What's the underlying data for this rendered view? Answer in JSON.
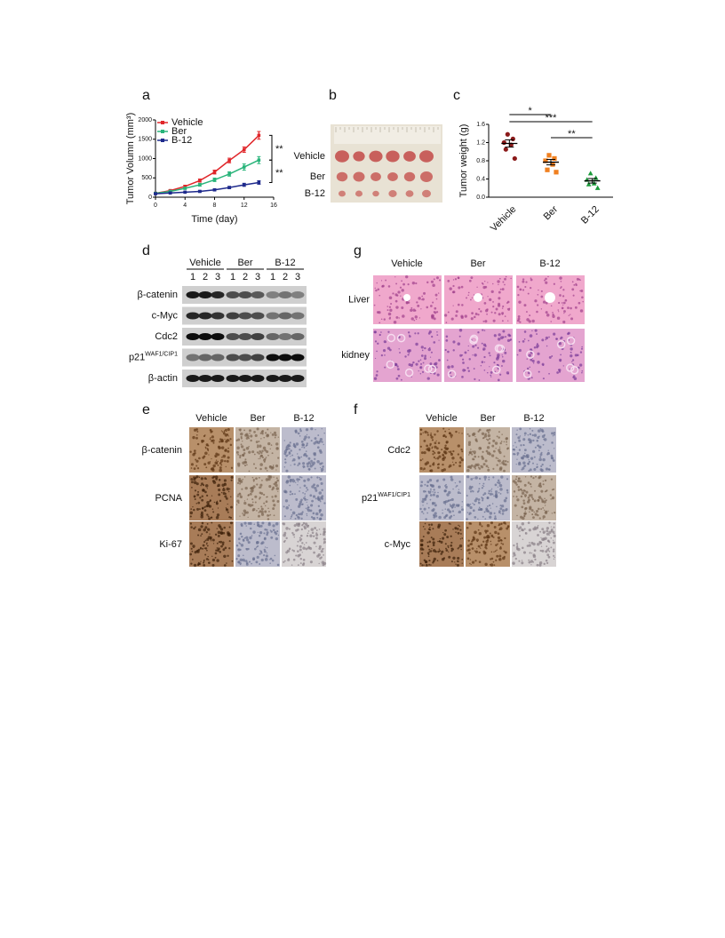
{
  "panels": [
    "a",
    "b",
    "c",
    "d",
    "e",
    "f",
    "g"
  ],
  "chart_data": [
    {
      "type": "line",
      "xlabel": "Time (day)",
      "ylabel": "Tumor Volumn (mm³)",
      "x": [
        0,
        2,
        4,
        6,
        8,
        10,
        12,
        14
      ],
      "xlim": [
        0,
        16
      ],
      "xticks": [
        0,
        4,
        8,
        12,
        16
      ],
      "ylim": [
        0,
        2000
      ],
      "yticks": [
        0,
        500,
        1000,
        1500,
        2000
      ],
      "legend": "upper left",
      "series": [
        {
          "name": "Vehicle",
          "color": "#e0262a",
          "values": [
            100,
            170,
            280,
            430,
            650,
            950,
            1230,
            1600
          ],
          "errors": [
            20,
            25,
            30,
            40,
            50,
            60,
            70,
            100
          ]
        },
        {
          "name": "Ber",
          "color": "#28b47a",
          "values": [
            100,
            150,
            230,
            320,
            450,
            600,
            780,
            960
          ],
          "errors": [
            20,
            20,
            25,
            35,
            45,
            55,
            80,
            90
          ]
        },
        {
          "name": "B-12",
          "color": "#1e2a8c",
          "values": [
            90,
            110,
            130,
            150,
            190,
            250,
            320,
            380
          ],
          "errors": [
            15,
            15,
            15,
            20,
            25,
            30,
            40,
            45
          ]
        }
      ],
      "annotations": [
        "**",
        "**"
      ]
    },
    {
      "type": "scatter",
      "ylabel": "Tumor weight (g)",
      "categories": [
        "Vehicle",
        "Ber",
        "B-12"
      ],
      "ylim": [
        0,
        1.6
      ],
      "yticks": [
        {
          "value": 0,
          "label": "0.0"
        },
        {
          "value": 0.4,
          "label": "0.4"
        },
        {
          "value": 0.8,
          "label": "0.8"
        },
        {
          "value": 1.2,
          "label": "1.2"
        },
        {
          "value": 1.6,
          "label": "1.6"
        }
      ],
      "series": [
        {
          "color": "#8b1a1a",
          "marker": "circle",
          "values": [
            1.38,
            1.28,
            1.2,
            1.15,
            1.05,
            0.85
          ]
        },
        {
          "color": "#f08020",
          "marker": "square",
          "values": [
            0.92,
            0.85,
            0.8,
            0.72,
            0.6,
            0.55
          ]
        },
        {
          "color": "#1a9a3a",
          "marker": "triangle",
          "values": [
            0.52,
            0.42,
            0.38,
            0.3,
            0.28,
            0.2
          ]
        }
      ],
      "means": [
        1.18,
        0.77,
        0.36
      ],
      "sems": [
        0.08,
        0.06,
        0.05
      ],
      "annotations": [
        "*",
        "***",
        "**"
      ]
    }
  ],
  "photo": {
    "labels": [
      "Vehicle",
      "Ber",
      "B-12"
    ]
  },
  "blot": {
    "groups": [
      "Vehicle",
      "Ber",
      "B-12"
    ],
    "lanes": [
      "1",
      "2",
      "3"
    ],
    "rows": [
      {
        "text": "β-catenin"
      },
      {
        "text": "c-Myc"
      },
      {
        "text": "Cdc2"
      },
      {
        "text": "p21",
        "sup": "WAF1/CIP1"
      },
      {
        "text": "β-actin"
      }
    ]
  },
  "ihc_e": {
    "columns": [
      "Vehicle",
      "Ber",
      "B-12"
    ],
    "rows": [
      {
        "text": "β-catenin"
      },
      {
        "text": "PCNA"
      },
      {
        "text": "Ki-67"
      }
    ]
  },
  "ihc_f": {
    "columns": [
      "Vehicle",
      "Ber",
      "B-12"
    ],
    "rows": [
      {
        "text": "Cdc2"
      },
      {
        "text": "p21",
        "sup": "WAF1/CIP1"
      },
      {
        "text": "c-Myc"
      }
    ]
  },
  "he_g": {
    "columns": [
      "Vehicle",
      "Ber",
      "B-12"
    ],
    "rows": [
      "Liver",
      "kidney"
    ]
  }
}
